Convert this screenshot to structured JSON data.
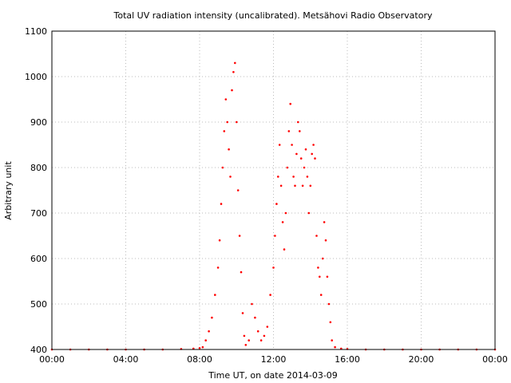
{
  "chart_data": {
    "type": "scatter",
    "title": "Total UV radiation intensity (uncalibrated). Metsähovi Radio Observatory",
    "xlabel": "Time UT, on date 2014-03-09",
    "ylabel": "Arbitrary unit",
    "xlim": [
      "00:00",
      "24:00"
    ],
    "ylim": [
      400,
      1100
    ],
    "x_ticks": [
      "00:00",
      "04:00",
      "08:00",
      "12:00",
      "16:00",
      "20:00",
      "00:00"
    ],
    "y_ticks": [
      400,
      500,
      600,
      700,
      800,
      900,
      1000,
      1100
    ],
    "grid": true,
    "marker_color": "#ff0000",
    "series": [
      {
        "points": [
          [
            "00:00",
            400
          ],
          [
            "01:00",
            400
          ],
          [
            "02:00",
            400
          ],
          [
            "03:00",
            400
          ],
          [
            "04:00",
            400
          ],
          [
            "05:00",
            400
          ],
          [
            "06:00",
            400
          ],
          [
            "07:00",
            401
          ],
          [
            "07:40",
            402
          ],
          [
            "08:00",
            403
          ],
          [
            "08:10",
            405
          ],
          [
            "08:20",
            420
          ],
          [
            "08:30",
            440
          ],
          [
            "08:40",
            470
          ],
          [
            "08:50",
            520
          ],
          [
            "09:00",
            580
          ],
          [
            "09:05",
            640
          ],
          [
            "09:10",
            720
          ],
          [
            "09:15",
            800
          ],
          [
            "09:20",
            880
          ],
          [
            "09:25",
            950
          ],
          [
            "09:30",
            900
          ],
          [
            "09:35",
            840
          ],
          [
            "09:40",
            780
          ],
          [
            "09:45",
            970
          ],
          [
            "09:50",
            1010
          ],
          [
            "09:55",
            1030
          ],
          [
            "10:00",
            900
          ],
          [
            "10:05",
            750
          ],
          [
            "10:10",
            650
          ],
          [
            "10:15",
            570
          ],
          [
            "10:20",
            480
          ],
          [
            "10:25",
            430
          ],
          [
            "10:30",
            410
          ],
          [
            "10:40",
            420
          ],
          [
            "10:50",
            500
          ],
          [
            "11:00",
            470
          ],
          [
            "11:10",
            440
          ],
          [
            "11:20",
            420
          ],
          [
            "11:30",
            430
          ],
          [
            "11:40",
            450
          ],
          [
            "11:50",
            520
          ],
          [
            "12:00",
            580
          ],
          [
            "12:05",
            650
          ],
          [
            "12:10",
            720
          ],
          [
            "12:15",
            780
          ],
          [
            "12:20",
            850
          ],
          [
            "12:25",
            760
          ],
          [
            "12:30",
            680
          ],
          [
            "12:35",
            620
          ],
          [
            "12:40",
            700
          ],
          [
            "12:45",
            800
          ],
          [
            "12:50",
            880
          ],
          [
            "12:55",
            940
          ],
          [
            "13:00",
            850
          ],
          [
            "13:05",
            780
          ],
          [
            "13:10",
            760
          ],
          [
            "13:15",
            830
          ],
          [
            "13:20",
            900
          ],
          [
            "13:25",
            880
          ],
          [
            "13:30",
            820
          ],
          [
            "13:35",
            760
          ],
          [
            "13:40",
            800
          ],
          [
            "13:45",
            840
          ],
          [
            "13:50",
            780
          ],
          [
            "13:55",
            700
          ],
          [
            "14:00",
            760
          ],
          [
            "14:05",
            830
          ],
          [
            "14:10",
            850
          ],
          [
            "14:15",
            820
          ],
          [
            "14:20",
            650
          ],
          [
            "14:25",
            580
          ],
          [
            "14:30",
            560
          ],
          [
            "14:35",
            520
          ],
          [
            "14:40",
            600
          ],
          [
            "14:45",
            680
          ],
          [
            "14:50",
            640
          ],
          [
            "14:55",
            560
          ],
          [
            "15:00",
            500
          ],
          [
            "15:05",
            460
          ],
          [
            "15:10",
            420
          ],
          [
            "15:20",
            405
          ],
          [
            "15:40",
            402
          ],
          [
            "16:00",
            401
          ],
          [
            "17:00",
            400
          ],
          [
            "18:00",
            400
          ],
          [
            "19:00",
            400
          ],
          [
            "20:00",
            400
          ],
          [
            "21:00",
            400
          ],
          [
            "22:00",
            400
          ],
          [
            "23:00",
            400
          ],
          [
            "24:00",
            400
          ]
        ]
      }
    ]
  }
}
